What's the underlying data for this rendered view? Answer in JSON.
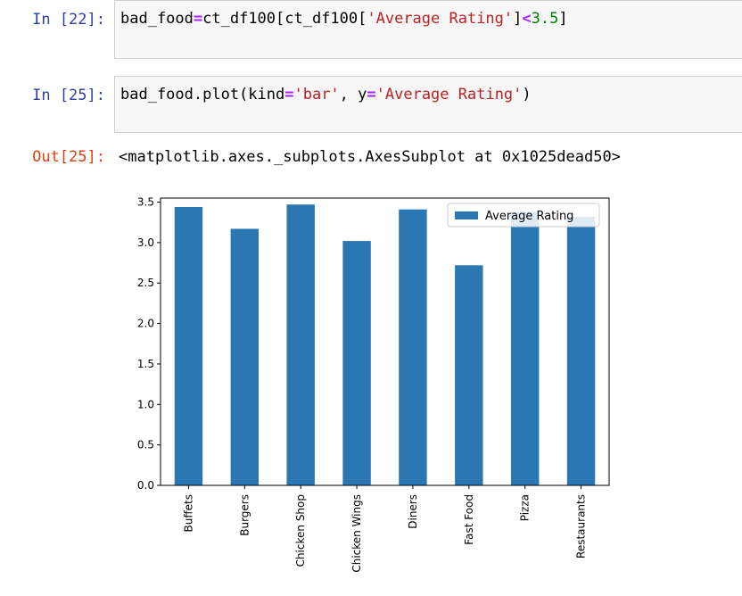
{
  "cells": [
    {
      "prompt": "In [22]:",
      "code": {
        "t1": "bad_food",
        "op1": "=",
        "t2": "ct_df100[ct_df100[",
        "s1": "'Average Rating'",
        "t3": "]",
        "op2": "<",
        "n1": "3.5",
        "t4": "]"
      }
    },
    {
      "prompt": "In [25]:",
      "code": {
        "t1": "bad_food.plot(kind",
        "op1": "=",
        "s1": "'bar'",
        "t2": ", y",
        "op2": "=",
        "s2": "'Average Rating'",
        "t3": ")"
      }
    }
  ],
  "output": {
    "prompt": "Out[25]:",
    "text": "<matplotlib.axes._subplots.AxesSubplot at 0x1025dead50>"
  },
  "colors": {
    "bar": "#2a77b4",
    "prompt_in": "#303f9f",
    "prompt_out": "#d84315"
  },
  "chart_data": {
    "type": "bar",
    "categories": [
      "Buffets",
      "Burgers",
      "Chicken Shop",
      "Chicken Wings",
      "Diners",
      "Fast Food",
      "Pizza",
      "Restaurants"
    ],
    "series": [
      {
        "name": "Average Rating",
        "values": [
          3.44,
          3.17,
          3.47,
          3.02,
          3.41,
          2.72,
          3.38,
          3.32
        ]
      }
    ],
    "ylim": [
      0,
      3.55
    ],
    "yticks": [
      "0.0",
      "0.5",
      "1.0",
      "1.5",
      "2.0",
      "2.5",
      "3.0",
      "3.5"
    ],
    "ytick_values": [
      0,
      0.5,
      1.0,
      1.5,
      2.0,
      2.5,
      3.0,
      3.5
    ],
    "legend": "top-right",
    "grid": false
  }
}
